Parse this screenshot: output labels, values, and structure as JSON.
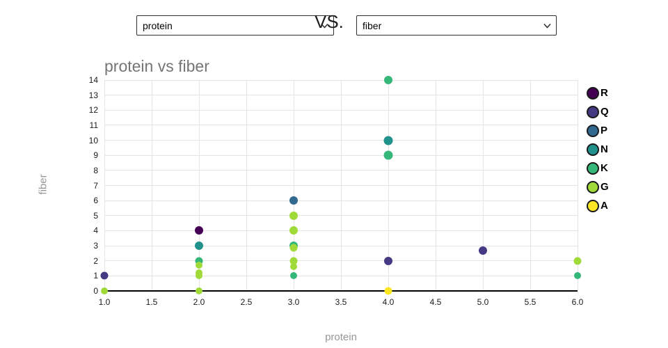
{
  "controls": {
    "x_select": {
      "value": "protein"
    },
    "vs_label": "VS.",
    "y_select": {
      "value": "fiber"
    }
  },
  "chart_data": {
    "type": "scatter",
    "title": "protein vs fiber",
    "xlabel": "protein",
    "ylabel": "fiber",
    "xlim": [
      1.0,
      6.0
    ],
    "ylim": [
      0,
      14
    ],
    "xticks": [
      1.0,
      1.5,
      2.0,
      2.5,
      3.0,
      3.5,
      4.0,
      4.5,
      5.0,
      5.5,
      6.0
    ],
    "xtick_labels": [
      "1.0",
      "1.5",
      "2.0",
      "2.5",
      "3.0",
      "3.5",
      "4.0",
      "4.5",
      "5.0",
      "5.5",
      "6.0"
    ],
    "yticks": [
      0,
      1,
      2,
      3,
      4,
      5,
      6,
      7,
      8,
      9,
      10,
      11,
      12,
      13,
      14
    ],
    "ytick_labels": [
      "0",
      "1",
      "2",
      "3",
      "4",
      "5",
      "6",
      "7",
      "8",
      "9",
      "10",
      "11",
      "12",
      "13",
      "14"
    ],
    "grid": true,
    "legend_position": "right",
    "point_size": 11,
    "series": [
      {
        "name": "R",
        "color": "#440154",
        "points": [
          [
            2,
            4,
            12
          ]
        ]
      },
      {
        "name": "Q",
        "color": "#443983",
        "points": [
          [
            1,
            1,
            11
          ],
          [
            4,
            2,
            12
          ],
          [
            5,
            2.7,
            12
          ]
        ]
      },
      {
        "name": "P",
        "color": "#31688e",
        "points": [
          [
            3,
            6,
            12
          ]
        ]
      },
      {
        "name": "N",
        "color": "#21918c",
        "points": [
          [
            2,
            3,
            12
          ],
          [
            4,
            10,
            13
          ]
        ]
      },
      {
        "name": "K",
        "color": "#35b779",
        "points": [
          [
            2,
            2,
            11
          ],
          [
            3,
            3,
            12
          ],
          [
            3,
            1,
            10
          ],
          [
            4,
            14,
            12
          ],
          [
            4,
            9,
            13
          ],
          [
            6,
            1,
            10
          ]
        ]
      },
      {
        "name": "G",
        "color": "#a0da39",
        "points": [
          [
            1,
            0,
            10
          ],
          [
            2,
            1.7,
            10
          ],
          [
            2,
            1.2,
            10
          ],
          [
            2,
            1,
            10
          ],
          [
            2,
            0,
            10
          ],
          [
            3,
            5,
            12
          ],
          [
            3,
            4,
            12
          ],
          [
            3,
            2.85,
            11
          ],
          [
            3,
            2,
            11
          ],
          [
            3,
            1.6,
            10
          ],
          [
            6,
            2,
            11
          ]
        ]
      },
      {
        "name": "A",
        "color": "#fde725",
        "points": [
          [
            4,
            0,
            11
          ]
        ]
      }
    ]
  }
}
